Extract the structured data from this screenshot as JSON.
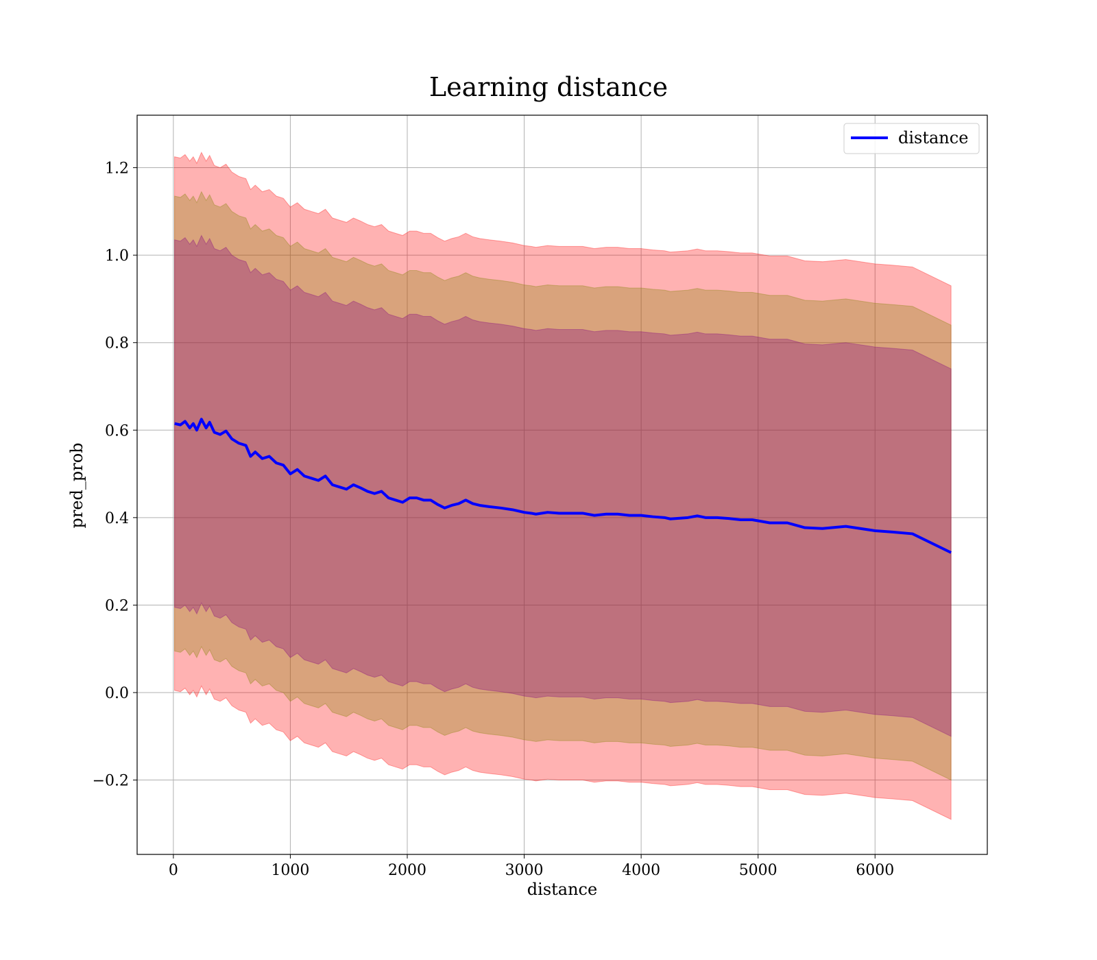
{
  "chart_data": {
    "type": "line",
    "title": "Learning distance",
    "xlabel": "distance",
    "ylabel": "pred_prob",
    "xlim": [
      -310,
      6960
    ],
    "ylim": [
      -0.37,
      1.32
    ],
    "xticks": [
      0,
      1000,
      2000,
      3000,
      4000,
      5000,
      6000
    ],
    "yticks": [
      -0.2,
      0.0,
      0.2,
      0.4,
      0.6,
      0.8,
      1.0,
      1.2
    ],
    "xtick_labels": [
      "0",
      "1000",
      "2000",
      "3000",
      "4000",
      "5000",
      "6000"
    ],
    "ytick_labels": [
      "−0.2",
      "0.0",
      "0.2",
      "0.4",
      "0.6",
      "0.8",
      "1.0",
      "1.2"
    ],
    "grid": true,
    "legend": {
      "position": "top-right",
      "entries": [
        "distance"
      ]
    },
    "series": [
      {
        "name": "distance",
        "color": "#0000ff",
        "x": [
          10,
          60,
          100,
          140,
          170,
          200,
          240,
          280,
          310,
          350,
          400,
          450,
          500,
          560,
          620,
          660,
          700,
          760,
          820,
          880,
          940,
          1000,
          1060,
          1120,
          1180,
          1240,
          1300,
          1360,
          1420,
          1480,
          1540,
          1600,
          1660,
          1720,
          1780,
          1840,
          1900,
          1960,
          2020,
          2080,
          2140,
          2200,
          2260,
          2320,
          2380,
          2440,
          2500,
          2560,
          2620,
          2700,
          2800,
          2900,
          3000,
          3060,
          3100,
          3200,
          3300,
          3400,
          3500,
          3600,
          3700,
          3800,
          3900,
          4000,
          4100,
          4200,
          4250,
          4300,
          4400,
          4480,
          4550,
          4650,
          4750,
          4850,
          4950,
          5100,
          5250,
          5400,
          5550,
          5750,
          6000,
          6150,
          6320,
          6650
        ],
        "y": [
          0.615,
          0.612,
          0.62,
          0.605,
          0.615,
          0.6,
          0.625,
          0.605,
          0.618,
          0.595,
          0.59,
          0.598,
          0.58,
          0.57,
          0.565,
          0.54,
          0.55,
          0.535,
          0.54,
          0.525,
          0.52,
          0.5,
          0.51,
          0.495,
          0.49,
          0.485,
          0.495,
          0.475,
          0.47,
          0.465,
          0.475,
          0.468,
          0.46,
          0.455,
          0.46,
          0.445,
          0.44,
          0.435,
          0.445,
          0.445,
          0.44,
          0.44,
          0.43,
          0.422,
          0.428,
          0.432,
          0.44,
          0.432,
          0.428,
          0.425,
          0.422,
          0.418,
          0.412,
          0.41,
          0.408,
          0.412,
          0.41,
          0.41,
          0.41,
          0.405,
          0.408,
          0.408,
          0.405,
          0.405,
          0.402,
          0.4,
          0.397,
          0.398,
          0.4,
          0.404,
          0.4,
          0.4,
          0.398,
          0.395,
          0.395,
          0.388,
          0.388,
          0.377,
          0.375,
          0.38,
          0.37,
          0.367,
          0.363,
          0.32
        ]
      }
    ],
    "bands": [
      {
        "offset": 0.61,
        "color": "#ff0000",
        "opacity": 0.3
      },
      {
        "offset": 0.52,
        "color": "#808000",
        "opacity": 0.3
      },
      {
        "offset": 0.42,
        "color": "#800080",
        "opacity": 0.3
      }
    ]
  }
}
